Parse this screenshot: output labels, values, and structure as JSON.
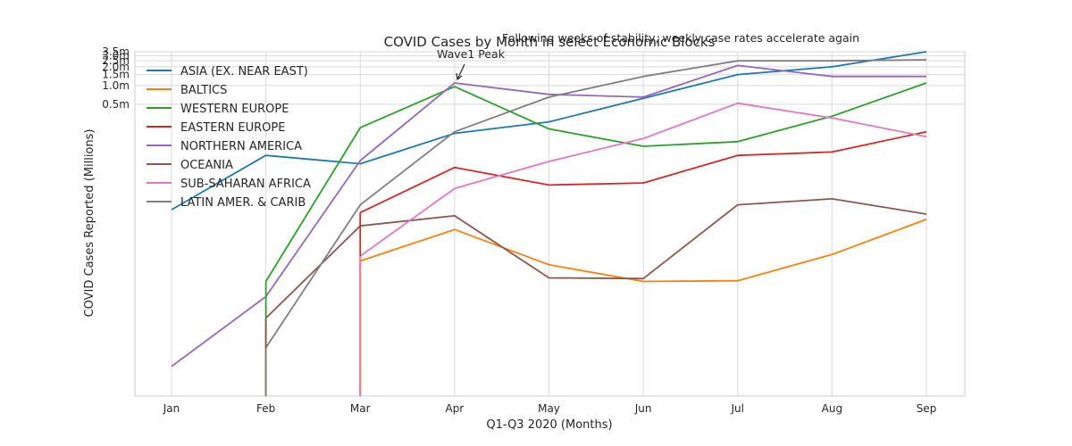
{
  "chart_data": {
    "type": "line",
    "title": "COVID Cases by Month in select Economic Blocks",
    "xlabel": "Q1-Q3 2020 (Months)",
    "ylabel": "COVID Cases Reported (Millions)",
    "categories": [
      "Jan",
      "Feb",
      "Mar",
      "Apr",
      "May",
      "Jun",
      "Jul",
      "Aug",
      "Sep"
    ],
    "y_scale": "log",
    "ylim": [
      10,
      3500000
    ],
    "y_ticks": [
      {
        "value": 500000,
        "label": "0.5m"
      },
      {
        "value": 1000000,
        "label": "1.0m"
      },
      {
        "value": 1500000,
        "label": "1.5m"
      },
      {
        "value": 2000000,
        "label": "2.0m"
      },
      {
        "value": 2500000,
        "label": "2.5m"
      },
      {
        "value": 3000000,
        "label": "3.0m"
      },
      {
        "value": 3500000,
        "label": "3.5m"
      }
    ],
    "grid": true,
    "legend_position": "top-left",
    "series": [
      {
        "name": "ASIA (EX. NEAR EAST)",
        "color": "#1f77b4",
        "points": [
          [
            0,
            10000
          ],
          [
            1,
            75000
          ],
          [
            2,
            55000
          ],
          [
            3,
            170000
          ],
          [
            4,
            260000
          ],
          [
            5,
            620000
          ],
          [
            6,
            1500000
          ],
          [
            7,
            2000000
          ],
          [
            8,
            3500000
          ]
        ]
      },
      {
        "name": "BALTICS",
        "color": "#ff7f0e",
        "points": [
          [
            2,
            1500
          ],
          [
            2,
            1500
          ],
          [
            3,
            4800
          ],
          [
            4,
            1300
          ],
          [
            5,
            700
          ],
          [
            6,
            720
          ],
          [
            7,
            1900
          ],
          [
            8,
            7000
          ]
        ]
      },
      {
        "name": "WESTERN EUROPE",
        "color": "#2ca02c",
        "points": [
          [
            1,
            700
          ],
          [
            1,
            700
          ],
          [
            2,
            210000
          ],
          [
            3,
            960000
          ],
          [
            4,
            200000
          ],
          [
            5,
            105000
          ],
          [
            6,
            125000
          ],
          [
            7,
            320000
          ],
          [
            8,
            1100000
          ]
        ]
      },
      {
        "name": "EASTERN EUROPE",
        "color": "#d62728",
        "points": [
          [
            2,
            9000
          ],
          [
            2,
            9000
          ],
          [
            3,
            48000
          ],
          [
            4,
            25000
          ],
          [
            5,
            27000
          ],
          [
            6,
            75000
          ],
          [
            7,
            85000
          ],
          [
            8,
            180000
          ]
        ]
      },
      {
        "name": "NORTHERN AMERICA",
        "color": "#9467bd",
        "points": [
          [
            0,
            30
          ],
          [
            1,
            400
          ],
          [
            2,
            62000
          ],
          [
            3,
            1100000
          ],
          [
            4,
            720000
          ],
          [
            5,
            650000
          ],
          [
            6,
            2100000
          ],
          [
            7,
            1400000
          ],
          [
            8,
            1400000
          ]
        ]
      },
      {
        "name": "OCEANIA",
        "color": "#8c564b",
        "points": [
          [
            1,
            180
          ],
          [
            1,
            180
          ],
          [
            2,
            5500
          ],
          [
            3,
            8000
          ],
          [
            4,
            800
          ],
          [
            5,
            780
          ],
          [
            6,
            12000
          ],
          [
            7,
            15000
          ],
          [
            8,
            8500
          ]
        ]
      },
      {
        "name": "SUB-SAHARAN AFRICA",
        "color": "#e377c2",
        "points": [
          [
            2,
            1800
          ],
          [
            2,
            1800
          ],
          [
            3,
            22000
          ],
          [
            4,
            60000
          ],
          [
            5,
            140000
          ],
          [
            6,
            520000
          ],
          [
            7,
            300000
          ],
          [
            8,
            150000
          ]
        ]
      },
      {
        "name": "LATIN AMER. & CARIB",
        "color": "#7f7f7f",
        "points": [
          [
            1,
            60
          ],
          [
            1,
            60
          ],
          [
            2,
            12000
          ],
          [
            3,
            180000
          ],
          [
            4,
            650000
          ],
          [
            5,
            1400000
          ],
          [
            6,
            2500000
          ],
          [
            7,
            2500000
          ],
          [
            8,
            2600000
          ]
        ]
      }
    ],
    "annotations": [
      {
        "text": "Wave1 Peak",
        "x": 3,
        "y": 1100000,
        "arrow": true
      },
      {
        "text": "Following weeks of stability, weekly case rates accelerate again"
      }
    ]
  }
}
